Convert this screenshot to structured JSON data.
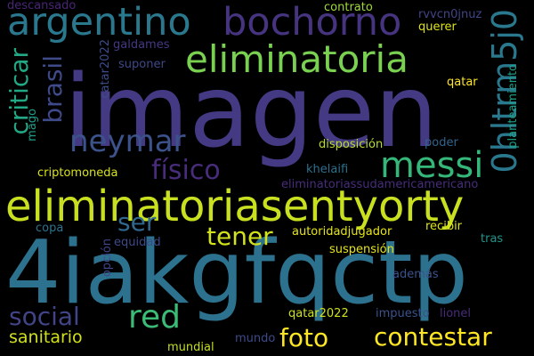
{
  "background_color": "#000000",
  "words": [
    {
      "text": "imagen",
      "color": "#443a83"
    },
    {
      "text": "4iakgfqctp",
      "color": "#2c728e"
    },
    {
      "text": "eliminatoriasentyorty",
      "color": "#c8e020"
    },
    {
      "text": "argentino",
      "color": "#2a788e"
    },
    {
      "text": "bochorno",
      "color": "#463480"
    },
    {
      "text": "eliminatoria",
      "color": "#7ad151"
    },
    {
      "text": "neymar",
      "color": "#3b528b"
    },
    {
      "text": "messi",
      "color": "#35b779"
    },
    {
      "text": "0hltrm5j0",
      "color": "#2a788e"
    },
    {
      "text": "criticar",
      "color": "#22a884"
    },
    {
      "text": "brasil",
      "color": "#3e4a89"
    },
    {
      "text": "físico",
      "color": "#472d7b"
    },
    {
      "text": "ser",
      "color": "#31688e"
    },
    {
      "text": "tener",
      "color": "#d2e21b"
    },
    {
      "text": "red",
      "color": "#3bbb75"
    },
    {
      "text": "social",
      "color": "#414487"
    },
    {
      "text": "foto",
      "color": "#fde725"
    },
    {
      "text": "contestar",
      "color": "#fde725"
    },
    {
      "text": "sanitario",
      "color": "#d0e11c"
    },
    {
      "text": "descansado",
      "color": "#482576"
    },
    {
      "text": "contrato",
      "color": "#9fda3a"
    },
    {
      "text": "rvvcn0jnuz",
      "color": "#414487"
    },
    {
      "text": "querer",
      "color": "#dde318"
    },
    {
      "text": "catar2022",
      "color": "#3d4d8a"
    },
    {
      "text": "galdames",
      "color": "#453882"
    },
    {
      "text": "suponer",
      "color": "#3f4889"
    },
    {
      "text": "mago",
      "color": "#1f9e89"
    },
    {
      "text": "qatar",
      "color": "#fde725"
    },
    {
      "text": "planteamiento",
      "color": "#1fa287"
    },
    {
      "text": "disposición",
      "color": "#b8de29"
    },
    {
      "text": "poder",
      "color": "#33638d"
    },
    {
      "text": "criptomoneda",
      "color": "#d8e219"
    },
    {
      "text": "khelaifi",
      "color": "#2e6f8e"
    },
    {
      "text": "eliminatoriassudamericamericano",
      "color": "#472d7b"
    },
    {
      "text": "copa",
      "color": "#2c728e"
    },
    {
      "text": "equidad",
      "color": "#3e4989"
    },
    {
      "text": "autoridadjugador",
      "color": "#e5e419"
    },
    {
      "text": "recibir",
      "color": "#dde318"
    },
    {
      "text": "tras",
      "color": "#1f968b"
    },
    {
      "text": "opción",
      "color": "#414487"
    },
    {
      "text": "suspensión",
      "color": "#e5e419"
    },
    {
      "text": "además",
      "color": "#3b528b"
    },
    {
      "text": "qatar2022",
      "color": "#cde11d"
    },
    {
      "text": "impuesto",
      "color": "#3b528b"
    },
    {
      "text": "lionel",
      "color": "#472c7a"
    },
    {
      "text": "mundial",
      "color": "#c2df23"
    },
    {
      "text": "mundo",
      "color": "#3e4a89"
    }
  ]
}
